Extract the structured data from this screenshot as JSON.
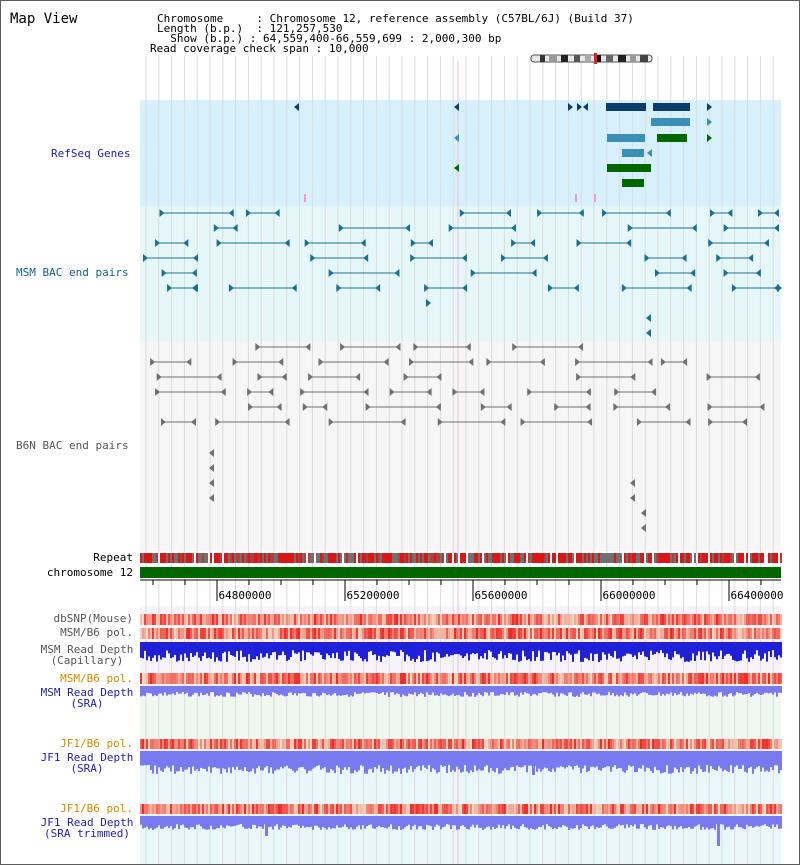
{
  "view": {
    "title": "Map View",
    "info": {
      "chromosome_label": "Chromosome",
      "chromosome_value": "Chromosome 12, reference assembly (C57BL/6J) (Build 37)",
      "length_label": "Length (b.p.)",
      "length_value": "121,257,530",
      "show_label": "Show (b.p.)",
      "show_value": "64,559,400-66,559,699 : 2,000,300 bp",
      "coverage_label": "Read coverage check span",
      "coverage_value": "10,000"
    }
  },
  "tracks": {
    "refseq": "RefSeq Genes",
    "msm_bac": "MSM BAC end pairs",
    "b6n_bac": "B6N BAC end pairs",
    "repeat": "Repeat",
    "chromosome": "chromosome 12",
    "dbsnp": "dbSNP(Mouse)",
    "msm_pol": "MSM/B6 pol.",
    "msm_depth_cap_1": "MSM Read Depth",
    "msm_depth_cap_2": "(Capillary)",
    "msm_pol_sra": "MSM/B6 pol.",
    "msm_depth_sra_1": "MSM Read Depth",
    "msm_depth_sra_2": "(SRA)",
    "jf1_pol": "JF1/B6 pol.",
    "jf1_depth_1": "JF1 Read Depth",
    "jf1_depth_2": "(SRA)",
    "jf1_pol_trim": "JF1/B6 pol.",
    "jf1_depth_trim_1": "JF1 Read Depth",
    "jf1_depth_trim_2": "(SRA trimmed)"
  },
  "axis": {
    "ticks": [
      "64800000",
      "65200000",
      "65600000",
      "66000000",
      "66400000"
    ]
  },
  "colors": {
    "label_blue": "#1f1fa0",
    "label_teal": "#14607e",
    "label_gray": "#555555",
    "label_orange": "#d08a00",
    "refseq_bg": "#d6f1fb",
    "msm_bg": "#e6f7fa",
    "b6n_bg": "#f6f6f6",
    "chromosome_green": "#006600",
    "gene_navy": "#0d3c6e",
    "gene_teal": "#3a8fb7",
    "gene_green": "#006600",
    "bac_teal": "#1a7090",
    "bac_gray": "#707070",
    "depth_blue": "#2020d8",
    "depth_lavender": "#7a7af0"
  }
}
